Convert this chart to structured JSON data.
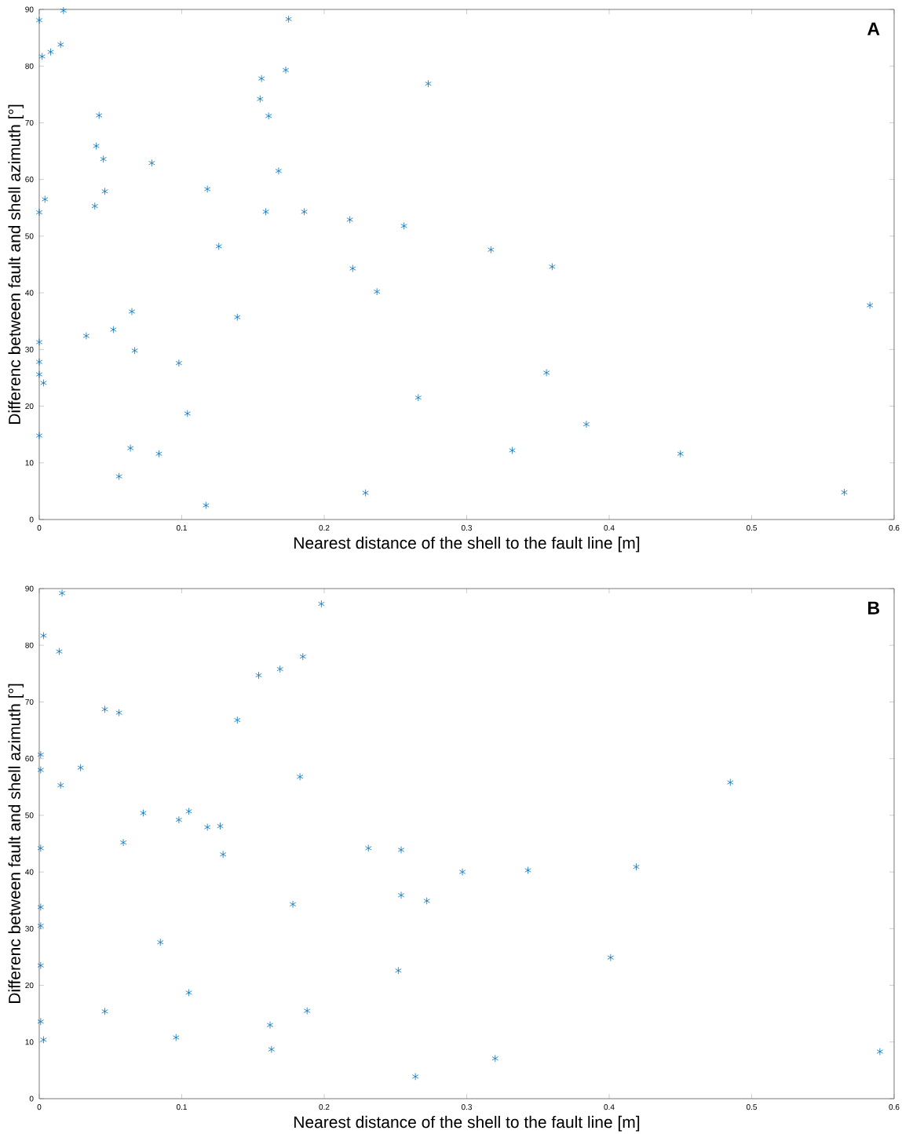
{
  "chart_data": [
    {
      "type": "scatter",
      "xlabel": "Nearest distance of the shell to the fault line [m]",
      "ylabel": "Differenc between fault and shell azimuth [°]",
      "annotations": [
        "A"
      ],
      "marker": "cross",
      "grid": false,
      "xlim": [
        0,
        0.6
      ],
      "ylim": [
        0,
        90
      ],
      "xticks": [
        0,
        0.1,
        0.2,
        0.3,
        0.4,
        0.5,
        0.6
      ],
      "yticks": [
        0,
        10,
        20,
        30,
        40,
        50,
        60,
        70,
        80,
        90
      ],
      "series": [
        {
          "color": "#0072bd",
          "x": [
            0.017,
            0,
            0.175,
            0.002,
            0.008,
            0.015,
            0.156,
            0.173,
            0.273,
            0.155,
            0.042,
            0.161,
            0.04,
            0.045,
            0.079,
            0.168,
            0.118,
            0.046,
            0.004,
            0,
            0.039,
            0.159,
            0.186,
            0.218,
            0.256,
            0.126,
            0.317,
            0.36,
            0.22,
            0.237,
            0.583,
            0.065,
            0.139,
            0.033,
            0.052,
            0,
            0.067,
            0,
            0.098,
            0,
            0.356,
            0.003,
            0.266,
            0.104,
            0.384,
            0,
            0.064,
            0.332,
            0.084,
            0.45,
            0.056,
            0.229,
            0.565,
            0.117
          ],
          "values": [
            89.8,
            88.1,
            88.3,
            81.7,
            82.5,
            83.8,
            77.8,
            79.3,
            76.9,
            74.2,
            71.3,
            71.2,
            65.9,
            63.6,
            62.9,
            61.5,
            58.3,
            57.9,
            56.5,
            54.2,
            55.3,
            54.3,
            54.3,
            52.9,
            51.8,
            48.2,
            47.6,
            44.6,
            44.3,
            40.2,
            37.8,
            36.7,
            35.7,
            32.4,
            33.5,
            31.3,
            29.8,
            27.8,
            27.6,
            25.6,
            25.9,
            24.1,
            21.5,
            18.7,
            16.8,
            14.8,
            12.6,
            12.2,
            11.6,
            11.6,
            7.6,
            4.7,
            4.8,
            2.5
          ]
        }
      ]
    },
    {
      "type": "scatter",
      "xlabel": "Nearest distance of the shell to the fault line [m]",
      "ylabel": "Differenc between fault and shell azimuth [°]",
      "annotations": [
        "B"
      ],
      "marker": "cross",
      "grid": false,
      "xlim": [
        0,
        0.6
      ],
      "ylim": [
        0,
        90
      ],
      "xticks": [
        0,
        0.1,
        0.2,
        0.3,
        0.4,
        0.5,
        0.6
      ],
      "yticks": [
        0,
        10,
        20,
        30,
        40,
        50,
        60,
        70,
        80,
        90
      ],
      "series": [
        {
          "color": "#0072bd",
          "x": [
            0.016,
            0.198,
            0.003,
            0.014,
            0.185,
            0.169,
            0.154,
            0.046,
            0.056,
            0.139,
            0.001,
            0.029,
            0.001,
            0.183,
            0.485,
            0.015,
            0.073,
            0.105,
            0.098,
            0.118,
            0.127,
            0.059,
            0.001,
            0.231,
            0.254,
            0.129,
            0.297,
            0.343,
            0.419,
            0.254,
            0.272,
            0.178,
            0.001,
            0.001,
            0.085,
            0.401,
            0.001,
            0.252,
            0.105,
            0.188,
            0.046,
            0.001,
            0.162,
            0.096,
            0.003,
            0.163,
            0.59,
            0.32,
            0.264
          ],
          "values": [
            89.2,
            87.3,
            81.7,
            78.9,
            78.0,
            75.8,
            74.7,
            68.7,
            68.1,
            66.8,
            60.7,
            58.4,
            58.0,
            56.8,
            55.8,
            55.3,
            50.4,
            50.7,
            49.2,
            47.9,
            48.1,
            45.2,
            44.2,
            44.2,
            43.9,
            43.1,
            40.0,
            40.3,
            40.9,
            35.9,
            34.9,
            34.3,
            33.8,
            30.5,
            27.6,
            24.9,
            23.5,
            22.6,
            18.7,
            15.5,
            15.4,
            13.6,
            13.0,
            10.8,
            10.4,
            8.7,
            8.3,
            7.1,
            3.9
          ]
        }
      ]
    }
  ]
}
